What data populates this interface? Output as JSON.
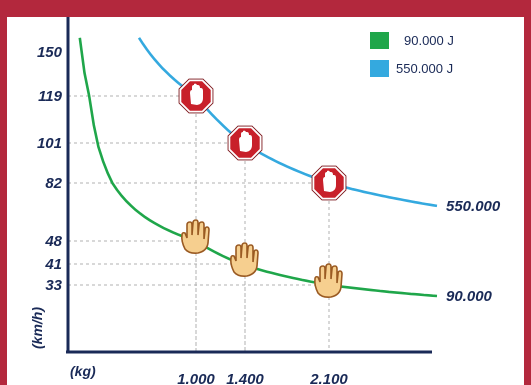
{
  "chart_data": {
    "type": "line",
    "xlabel": "(kg)",
    "ylabel": "(km/h)",
    "x_ticks": [
      "1.000",
      "1.400",
      "2.100"
    ],
    "y_ticks": [
      "150",
      "119",
      "101",
      "82",
      "48",
      "41",
      "33"
    ],
    "series": [
      {
        "name": "90.000 J",
        "end_label": "90.000",
        "color": "#1fa64a",
        "marker": "hand-icon",
        "points": [
          {
            "x": 1000,
            "y": 48
          },
          {
            "x": 1400,
            "y": 41
          },
          {
            "x": 2100,
            "y": 33
          }
        ]
      },
      {
        "name": "550.000 J",
        "end_label": "550.000",
        "color": "#34a9df",
        "marker": "stop-sign-icon",
        "points": [
          {
            "x": 1000,
            "y": 119
          },
          {
            "x": 1400,
            "y": 101
          },
          {
            "x": 2100,
            "y": 82
          }
        ]
      }
    ],
    "grid": "dashed guide lines at marked points",
    "legend": "top-right"
  }
}
